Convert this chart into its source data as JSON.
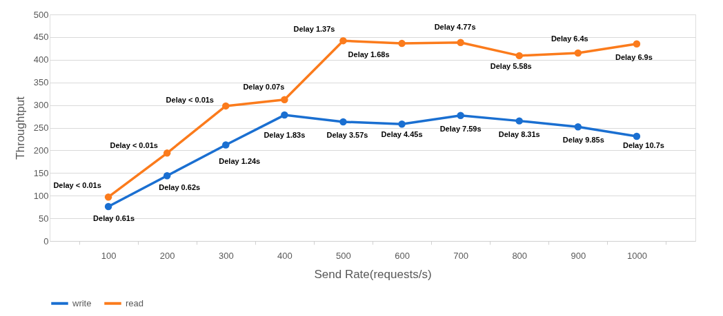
{
  "chart_data": {
    "type": "line",
    "xlabel": "Send Rate(requests/s)",
    "ylabel": "Throughtput",
    "categories": [
      "100",
      "200",
      "300",
      "400",
      "500",
      "600",
      "700",
      "800",
      "900",
      "1000"
    ],
    "series": [
      {
        "name": "write",
        "color": "#1a6fd1",
        "values": [
          76,
          144,
          212,
          278,
          263,
          258,
          277,
          265,
          252,
          231
        ]
      },
      {
        "name": "read",
        "color": "#fb7b1c",
        "values": [
          97,
          194,
          298,
          312,
          442,
          436,
          438,
          409,
          415,
          435
        ]
      }
    ],
    "ylim": [
      0,
      500
    ],
    "yticks": [
      0,
      50,
      100,
      150,
      200,
      250,
      300,
      350,
      400,
      450,
      500
    ],
    "grid": "y",
    "legend": "bottom",
    "marker": "circle",
    "line_style": "solid",
    "annotations": [
      {
        "text": "Delay < 0.01s",
        "x": "100",
        "y": 97
      },
      {
        "text": "Delay < 0.01s",
        "x": "200",
        "y": 194
      },
      {
        "text": "Delay < 0.01s",
        "x": "300",
        "y": 298
      },
      {
        "text": "Delay 0.07s",
        "x": "400",
        "y": 312
      },
      {
        "text": "Delay 1.37s",
        "x": "500",
        "y": 442
      },
      {
        "text": "Delay 1.68s",
        "x": "600",
        "y": 436
      },
      {
        "text": "Delay  4.77s",
        "x": "700",
        "y": 438
      },
      {
        "text": "Delay 5.58s",
        "x": "800",
        "y": 409
      },
      {
        "text": "Delay 6.4s",
        "x": "900",
        "y": 415
      },
      {
        "text": "Delay 6.9s",
        "x": "1000",
        "y": 435
      },
      {
        "text": "Delay 0.61s",
        "x": "100",
        "y": 76
      },
      {
        "text": "Delay 0.62s",
        "x": "200",
        "y": 144
      },
      {
        "text": "Delay 1.24s",
        "x": "300",
        "y": 212
      },
      {
        "text": "Delay 1.83s",
        "x": "400",
        "y": 278
      },
      {
        "text": "Delay 3.57s",
        "x": "500",
        "y": 263
      },
      {
        "text": "Delay 4.45s",
        "x": "600",
        "y": 258
      },
      {
        "text": "Delay 7.59s",
        "x": "700",
        "y": 277
      },
      {
        "text": "Delay 8.31s",
        "x": "800",
        "y": 265
      },
      {
        "text": "Delay 9.85s",
        "x": "900",
        "y": 252
      },
      {
        "text": "Delay 10.7s",
        "x": "1000",
        "y": 231
      }
    ]
  }
}
